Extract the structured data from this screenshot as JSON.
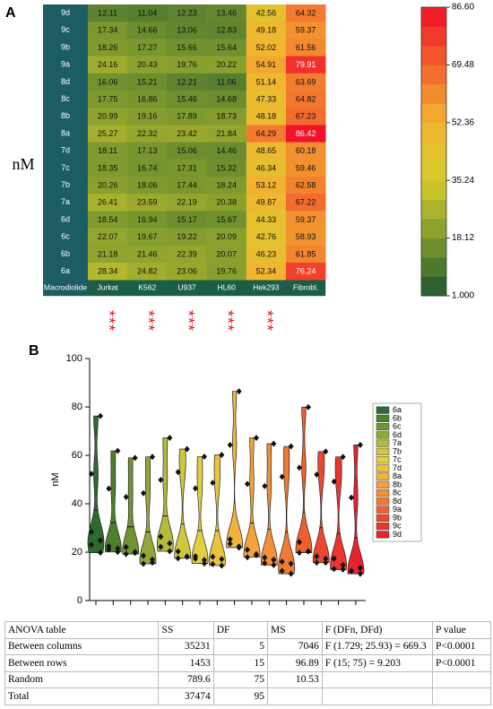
{
  "chart_data": [
    {
      "type": "heatmap",
      "label": "A",
      "ylabel": "nM",
      "corner_label": "Macrodiolide",
      "rows": [
        "9d",
        "9c",
        "9b",
        "9a",
        "8d",
        "8c",
        "8b",
        "8a",
        "7d",
        "7c",
        "7b",
        "7a",
        "6d",
        "6c",
        "6b",
        "6a"
      ],
      "columns": [
        "Jurkat",
        "K562",
        "U937",
        "HL60",
        "Hek293",
        "Fibrobl."
      ],
      "values": [
        [
          12.11,
          11.04,
          12.23,
          13.46,
          42.56,
          64.32
        ],
        [
          17.34,
          14.66,
          13.06,
          12.83,
          49.18,
          59.37
        ],
        [
          18.26,
          17.27,
          15.66,
          15.64,
          52.02,
          61.56
        ],
        [
          24.16,
          20.43,
          19.76,
          20.22,
          54.91,
          79.91
        ],
        [
          16.06,
          15.21,
          12.21,
          11.06,
          51.14,
          63.69
        ],
        [
          17.75,
          16.86,
          15.46,
          14.68,
          47.33,
          64.82
        ],
        [
          20.99,
          19.16,
          17.89,
          18.73,
          48.18,
          67.23
        ],
        [
          25.27,
          22.32,
          23.42,
          21.84,
          64.29,
          86.42
        ],
        [
          18.11,
          17.13,
          15.06,
          14.46,
          48.65,
          60.18
        ],
        [
          18.35,
          16.74,
          17.31,
          15.32,
          46.34,
          59.46
        ],
        [
          20.26,
          18.06,
          17.44,
          18.24,
          53.12,
          62.58
        ],
        [
          26.41,
          23.59,
          22.19,
          20.38,
          49.87,
          67.22
        ],
        [
          18.54,
          16.94,
          15.17,
          15.67,
          44.33,
          59.37
        ],
        [
          22.07,
          19.67,
          19.22,
          20.09,
          42.76,
          58.93
        ],
        [
          21.18,
          21.46,
          22.39,
          20.07,
          46.23,
          61.85
        ],
        [
          28.34,
          24.82,
          23.06,
          19.76,
          52.34,
          76.24
        ]
      ],
      "significance": [
        "***",
        "***",
        "***",
        "***",
        "***",
        null
      ],
      "significance_color": "#e8141e",
      "clim": [
        1,
        86.6
      ],
      "cticks": [
        {
          "value": 1,
          "label": "1.000"
        },
        18.12,
        35.24,
        52.36,
        69.48,
        {
          "value": 86.6,
          "label": "86.60"
        }
      ],
      "colorscale": [
        "#1e5530",
        "#7f9a2e",
        "#d6cc2c",
        "#f2b531",
        "#f3612c",
        "#f1122b"
      ],
      "label_column_color": "#1b5d63",
      "header_color": "#1b5e48"
    },
    {
      "type": "violin",
      "label": "B",
      "ylabel": "nM",
      "ylim": [
        0,
        100
      ],
      "yticks": [
        0,
        20,
        40,
        60,
        80,
        100
      ],
      "series": [
        {
          "name": "6a",
          "color": "#2e6a2e"
        },
        {
          "name": "6b",
          "color": "#4e7f2c"
        },
        {
          "name": "6c",
          "color": "#6f9432"
        },
        {
          "name": "6d",
          "color": "#93a83a"
        },
        {
          "name": "7a",
          "color": "#b5ba3c"
        },
        {
          "name": "7b",
          "color": "#cfc83e"
        },
        {
          "name": "7c",
          "color": "#e2cf3f"
        },
        {
          "name": "7d",
          "color": "#e9c43b"
        },
        {
          "name": "8a",
          "color": "#f1b33a"
        },
        {
          "name": "8b",
          "color": "#f3a33a"
        },
        {
          "name": "8c",
          "color": "#f38f38"
        },
        {
          "name": "8d",
          "color": "#f07a34"
        },
        {
          "name": "9a",
          "color": "#ee6030"
        },
        {
          "name": "9b",
          "color": "#ec4830"
        },
        {
          "name": "9c",
          "color": "#ea3530"
        },
        {
          "name": "9d",
          "color": "#e8222e"
        }
      ],
      "legend": "right"
    }
  ],
  "table": {
    "header": [
      "ANOVA table",
      "SS",
      "DF",
      "MS",
      "F (DFn, DFd)",
      "P value"
    ],
    "rows": [
      [
        "Between columns",
        "35231",
        "5",
        "7046",
        "F (1.729; 25.93) = 669.3",
        "P<0.0001"
      ],
      [
        "Between rows",
        "1453",
        "15",
        "96.89",
        "F (15; 75) = 9.203",
        "P<0.0001"
      ],
      [
        "Random",
        "789.6",
        "75",
        "10.53",
        null,
        null
      ],
      [
        "Total",
        "37474",
        "95",
        null,
        null,
        null
      ]
    ]
  }
}
